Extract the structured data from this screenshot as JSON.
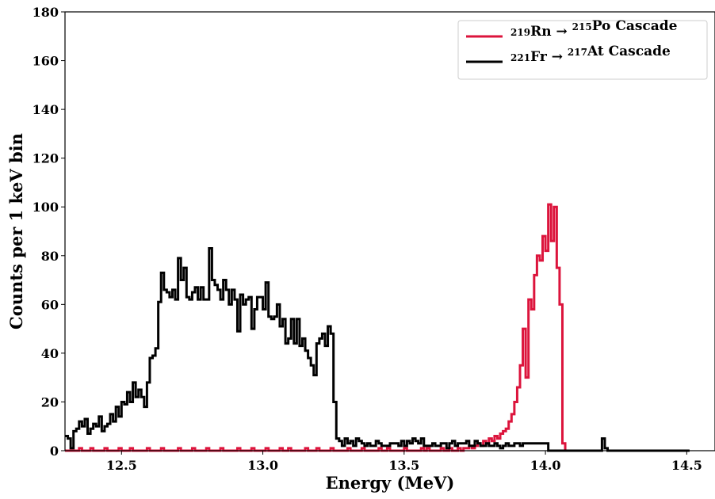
{
  "chart_data": {
    "type": "line",
    "step": true,
    "xlabel": "Energy (MeV)",
    "ylabel": "Counts per 1 keV bin",
    "xlim": [
      12.3,
      14.6
    ],
    "ylim": [
      0,
      180
    ],
    "xticks": [
      12.5,
      13.0,
      13.5,
      14.0,
      14.5
    ],
    "xtick_labels": [
      "12.5",
      "13.0",
      "13.5",
      "14.0",
      "14.5"
    ],
    "yticks": [
      0,
      20,
      40,
      60,
      80,
      100,
      120,
      140,
      160,
      180
    ],
    "ytick_labels": [
      "0",
      "20",
      "40",
      "60",
      "80",
      "100",
      "120",
      "140",
      "160",
      "180"
    ],
    "grid": false,
    "legend_position": "top-right",
    "series": [
      {
        "name": "219Rn → 215Po Cascade",
        "legend": {
          "sup1": "219",
          "base1": "Rn",
          "arrow": "→",
          "sup2": "215",
          "base2": "Po",
          "tail": "Cascade"
        },
        "color": "#dc143c",
        "bin_width": 0.01,
        "x_start": 12.3,
        "values": [
          0,
          0,
          0,
          0,
          0,
          1,
          0,
          0,
          0,
          1,
          0,
          0,
          0,
          0,
          1,
          0,
          0,
          0,
          0,
          1,
          0,
          0,
          0,
          1,
          0,
          0,
          0,
          0,
          0,
          1,
          0,
          0,
          0,
          0,
          1,
          0,
          0,
          0,
          0,
          0,
          1,
          0,
          0,
          0,
          0,
          1,
          0,
          0,
          0,
          0,
          1,
          0,
          0,
          0,
          0,
          1,
          0,
          0,
          0,
          0,
          0,
          1,
          0,
          0,
          0,
          0,
          1,
          0,
          0,
          0,
          0,
          1,
          0,
          0,
          0,
          0,
          1,
          0,
          0,
          1,
          0,
          0,
          0,
          0,
          0,
          1,
          0,
          0,
          0,
          1,
          0,
          0,
          0,
          0,
          1,
          0,
          0,
          0,
          0,
          0,
          1,
          0,
          0,
          0,
          0,
          1,
          0,
          0,
          0,
          0,
          0,
          1,
          0,
          0,
          1,
          0,
          0,
          0,
          0,
          0,
          1,
          0,
          0,
          0,
          0,
          0,
          1,
          0,
          1,
          0,
          0,
          0,
          0,
          1,
          0,
          0,
          1,
          0,
          0,
          1,
          0,
          1,
          1,
          2,
          1,
          2,
          3,
          2,
          4,
          3,
          5,
          4,
          6,
          5,
          7,
          8,
          9,
          12,
          15,
          20,
          26,
          35,
          50,
          30,
          62,
          58,
          72,
          80,
          78,
          88,
          82,
          101,
          86,
          100,
          75,
          60,
          3,
          0,
          0,
          0,
          0,
          0,
          0,
          0,
          0,
          0
        ]
      },
      {
        "name": "221Fr → 217At Cascade",
        "legend": {
          "sup1": "221",
          "base1": "Fr",
          "arrow": "→",
          "sup2": "217",
          "base2": "At",
          "tail": "Cascade"
        },
        "color": "#000000",
        "bin_width": 0.01,
        "x_start": 12.3,
        "values": [
          6,
          5,
          1,
          8,
          9,
          12,
          10,
          13,
          7,
          9,
          11,
          10,
          14,
          8,
          10,
          11,
          15,
          12,
          18,
          14,
          20,
          19,
          24,
          20,
          28,
          22,
          25,
          22,
          18,
          28,
          38,
          39,
          42,
          61,
          73,
          66,
          65,
          63,
          66,
          62,
          79,
          70,
          75,
          63,
          62,
          65,
          67,
          62,
          67,
          62,
          62,
          83,
          70,
          68,
          66,
          62,
          70,
          66,
          60,
          66,
          62,
          49,
          64,
          60,
          62,
          63,
          50,
          58,
          63,
          63,
          58,
          69,
          55,
          54,
          55,
          60,
          51,
          54,
          44,
          46,
          54,
          44,
          54,
          43,
          46,
          41,
          38,
          35,
          31,
          44,
          46,
          48,
          43,
          51,
          48,
          20,
          5,
          4,
          2,
          5,
          3,
          4,
          2,
          5,
          4,
          3,
          2,
          3,
          2,
          2,
          4,
          3,
          2,
          2,
          2,
          3,
          3,
          3,
          2,
          4,
          2,
          4,
          3,
          5,
          4,
          3,
          5,
          2,
          2,
          2,
          3,
          2,
          2,
          3,
          3,
          1,
          3,
          4,
          2,
          3,
          3,
          3,
          4,
          2,
          2,
          4,
          3,
          2,
          2,
          3,
          2,
          2,
          3,
          2,
          1,
          2,
          3,
          2,
          2,
          3,
          3,
          2,
          3,
          3,
          3,
          3,
          3,
          3,
          3,
          3,
          3,
          0,
          0,
          0,
          0,
          0,
          0,
          0,
          0,
          0,
          0,
          0,
          0,
          0,
          0,
          0,
          0,
          0,
          0,
          0,
          5,
          1,
          0,
          0,
          0,
          0,
          0,
          0,
          0,
          0,
          0,
          0,
          0,
          0,
          0,
          0,
          0,
          0,
          0,
          0,
          0,
          0,
          0,
          0,
          0,
          0,
          0,
          0,
          0,
          0,
          0
        ]
      }
    ]
  }
}
